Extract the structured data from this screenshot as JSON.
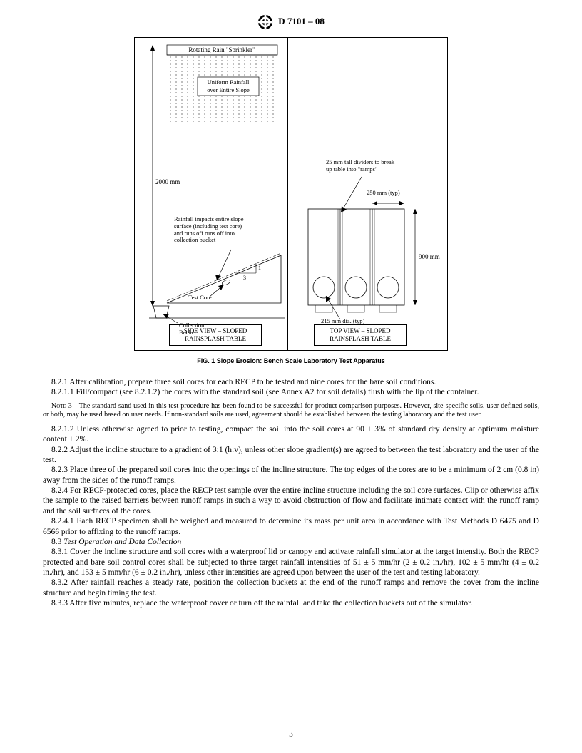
{
  "header": {
    "designation": "D 7101 – 08"
  },
  "figure": {
    "sprinkler_label": "Rotating Rain \"Sprinkler\"",
    "uniform_rainfall": "Uniform Rainfall\nover Entire Slope",
    "height_label": "2000 mm",
    "impact_text": "Rainfall impacts entire slope\nsurface (including test core)\nand runs off runs off into\ncollection bucket",
    "test_core": "Test Core",
    "collection_bucket": "Collection\nBucket",
    "slope_num1": "1",
    "slope_num3": "3",
    "dividers_text": "25 mm tall dividers to break\nup table into \"ramps\"",
    "width_250": "250 mm (typ)",
    "height_900": "900 mm",
    "dia_215": "215 mm dia. (typ)",
    "side_title": "SIDE VIEW – SLOPED\nRAINSPLASH TABLE",
    "top_title": "TOP VIEW – SLOPED\nRAINSPLASH TABLE",
    "caption": "FIG. 1 Slope Erosion: Bench Scale Laboratory Test Apparatus"
  },
  "paragraphs": {
    "p821": "8.2.1 After calibration, prepare three soil cores for each RECP to be tested and nine cores for the bare soil conditions.",
    "p8211": "8.2.1.1 Fill/compact (see 8.2.1.2) the cores with the standard soil (see Annex A2 for soil details) flush with the lip of the container.",
    "note3_label": "Note 3—",
    "note3": "The standard sand used in this test procedure has been found to be successful for product comparison purposes. However, site-specific soils, user-defined soils, or both, may be used based on user needs. If non-standard soils are used, agreement should be established between the testing laboratory and the test user.",
    "p8212": "8.2.1.2 Unless otherwise agreed to prior to testing, compact the soil into the soil cores at 90 ± 3% of standard dry density at optimum moisture content ± 2%.",
    "p822": "8.2.2 Adjust the incline structure to a gradient of 3:1 (h:v), unless other slope gradient(s) are agreed to between the test laboratory and the user of the test.",
    "p823": "8.2.3 Place three of the prepared soil cores into the openings of the incline structure. The top edges of the cores are to be a minimum of 2 cm (0.8 in) away from the sides of the runoff ramps.",
    "p824": "8.2.4 For RECP-protected cores, place the RECP test sample over the entire incline structure including the soil core surfaces. Clip or otherwise affix the sample to the raised barriers between runoff ramps in such a way to avoid obstruction of flow and facilitate intimate contact with the runoff ramp and the soil surfaces of the cores.",
    "p8241": "8.2.4.1 Each RECP specimen shall be weighed and measured to determine its mass per unit area in accordance with Test Methods D 6475 and D 6566 prior to affixing to the runoff ramps.",
    "sec83": "8.3 Test Operation and Data Collection",
    "p831": "8.3.1 Cover the incline structure and soil cores with a waterproof lid or canopy and activate rainfall simulator at the target intensity. Both the RECP protected and bare soil control cores shall be subjected to three target rainfall intensities of 51 ± 5 mm/hr (2 ± 0.2 in./hr), 102 ± 5 mm/hr (4 ± 0.2 in./hr), and 153 ± 5 mm/hr (6 ± 0.2 in./hr), unless other intensities are agreed upon between the user of the test and testing laboratory.",
    "p832": "8.3.2 After rainfall reaches a steady rate, position the collection buckets at the end of the runoff ramps and remove the cover from the incline structure and begin timing the test.",
    "p833": "8.3.3 After five minutes, replace the waterproof cover or turn off the rainfall and take the collection buckets out of the simulator."
  },
  "page_number": "3",
  "style": {
    "stroke": "#000000",
    "fill_none": "none",
    "bg": "#ffffff"
  }
}
